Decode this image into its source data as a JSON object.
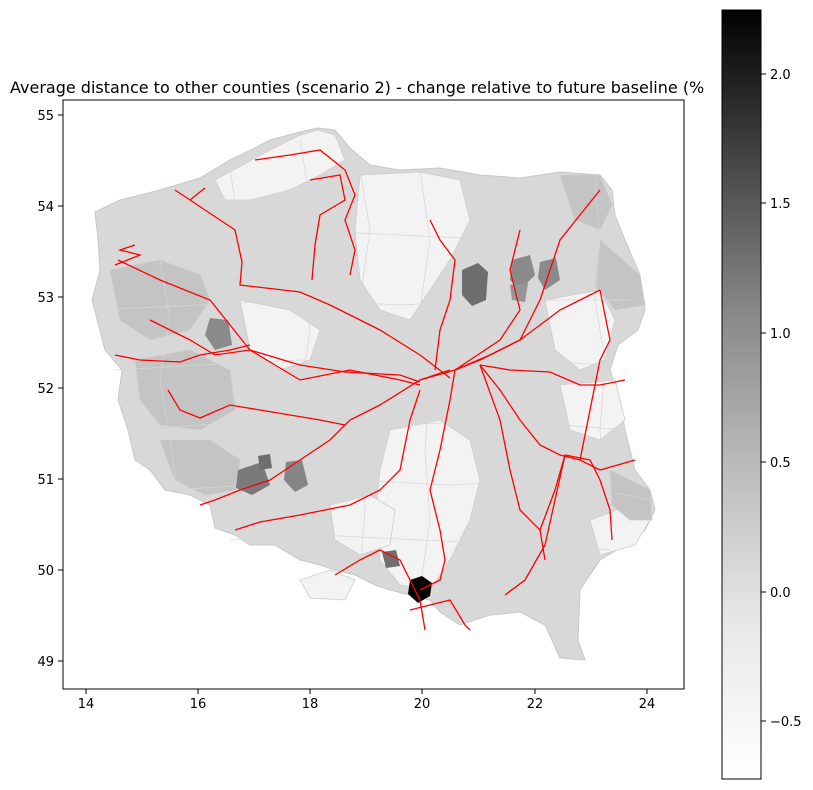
{
  "title": "Average distance to other counties (scenario 2) - change relative to future baseline (%",
  "axes": {
    "x_ticks": [
      "14",
      "16",
      "18",
      "20",
      "22",
      "24"
    ],
    "y_ticks": [
      "49",
      "50",
      "51",
      "52",
      "53",
      "54",
      "55"
    ],
    "xlim": [
      13.6,
      24.6
    ],
    "ylim": [
      48.7,
      55.2
    ]
  },
  "colorbar": {
    "min": -0.75,
    "max": 2.25,
    "ticks": [
      "−0.5",
      "0.0",
      "0.5",
      "1.0",
      "1.5",
      "2.0"
    ],
    "tick_values": [
      -0.5,
      0.0,
      0.5,
      1.0,
      1.5,
      2.0
    ],
    "colormap": "Greys"
  },
  "colors": {
    "rail_lines": "#ff0000",
    "county_borders": "#c8c8c8",
    "hotspot": "#000000"
  }
}
